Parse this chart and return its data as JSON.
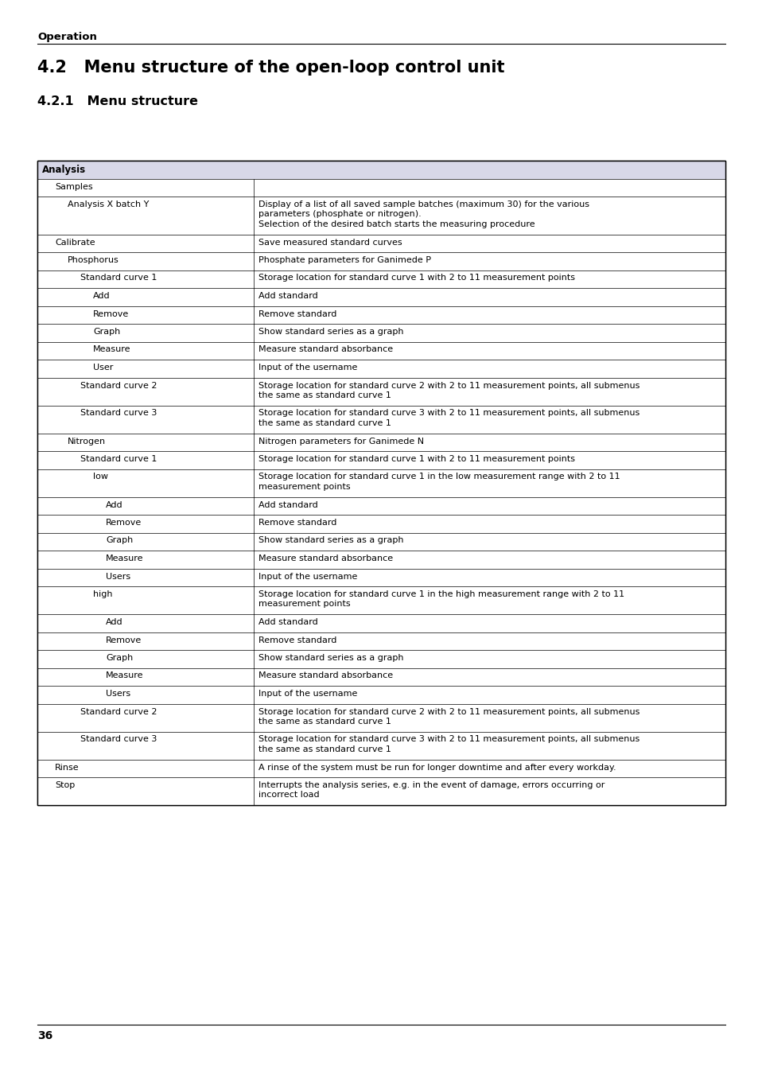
{
  "page_title": "Operation",
  "section_title": "4.2   Menu structure of the open-loop control unit",
  "subsection_title": "4.2.1   Menu structure",
  "page_number": "36",
  "header_bg": "#d8d8e8",
  "table_border": "#000000",
  "table_rows": [
    {
      "indent": 0,
      "col1": "Analysis",
      "col2": "",
      "header": true
    },
    {
      "indent": 1,
      "col1": "Samples",
      "col2": ""
    },
    {
      "indent": 2,
      "col1": "Analysis X batch Y",
      "col2": "Display of a list of all saved sample batches (maximum 30) for the various\nparameters (phosphate or nitrogen).\nSelection of the desired batch starts the measuring procedure"
    },
    {
      "indent": 1,
      "col1": "Calibrate",
      "col2": "Save measured standard curves"
    },
    {
      "indent": 2,
      "col1": "Phosphorus",
      "col2": "Phosphate parameters for Ganimede P"
    },
    {
      "indent": 3,
      "col1": "Standard curve 1",
      "col2": "Storage location for standard curve 1 with 2 to 11 measurement points"
    },
    {
      "indent": 4,
      "col1": "Add",
      "col2": "Add standard"
    },
    {
      "indent": 4,
      "col1": "Remove",
      "col2": "Remove standard"
    },
    {
      "indent": 4,
      "col1": "Graph",
      "col2": "Show standard series as a graph"
    },
    {
      "indent": 4,
      "col1": "Measure",
      "col2": "Measure standard absorbance"
    },
    {
      "indent": 4,
      "col1": "User",
      "col2": "Input of the username"
    },
    {
      "indent": 3,
      "col1": "Standard curve 2",
      "col2": "Storage location for standard curve 2 with 2 to 11 measurement points, all submenus\nthe same as standard curve 1"
    },
    {
      "indent": 3,
      "col1": "Standard curve 3",
      "col2": "Storage location for standard curve 3 with 2 to 11 measurement points, all submenus\nthe same as standard curve 1"
    },
    {
      "indent": 2,
      "col1": "Nitrogen",
      "col2": "Nitrogen parameters for Ganimede N"
    },
    {
      "indent": 3,
      "col1": "Standard curve 1",
      "col2": "Storage location for standard curve 1 with 2 to 11 measurement points"
    },
    {
      "indent": 4,
      "col1": "low",
      "col2": "Storage location for standard curve 1 in the low measurement range with 2 to 11\nmeasurement points"
    },
    {
      "indent": 5,
      "col1": "Add",
      "col2": "Add standard"
    },
    {
      "indent": 5,
      "col1": "Remove",
      "col2": "Remove standard"
    },
    {
      "indent": 5,
      "col1": "Graph",
      "col2": "Show standard series as a graph"
    },
    {
      "indent": 5,
      "col1": "Measure",
      "col2": "Measure standard absorbance"
    },
    {
      "indent": 5,
      "col1": "Users",
      "col2": "Input of the username"
    },
    {
      "indent": 4,
      "col1": "high",
      "col2": "Storage location for standard curve 1 in the high measurement range with 2 to 11\nmeasurement points"
    },
    {
      "indent": 5,
      "col1": "Add",
      "col2": "Add standard"
    },
    {
      "indent": 5,
      "col1": "Remove",
      "col2": "Remove standard"
    },
    {
      "indent": 5,
      "col1": "Graph",
      "col2": "Show standard series as a graph"
    },
    {
      "indent": 5,
      "col1": "Measure",
      "col2": "Measure standard absorbance"
    },
    {
      "indent": 5,
      "col1": "Users",
      "col2": "Input of the username"
    },
    {
      "indent": 3,
      "col1": "Standard curve 2",
      "col2": "Storage location for standard curve 2 with 2 to 11 measurement points, all submenus\nthe same as standard curve 1"
    },
    {
      "indent": 3,
      "col1": "Standard curve 3",
      "col2": "Storage location for standard curve 3 with 2 to 11 measurement points, all submenus\nthe same as standard curve 1"
    },
    {
      "indent": 1,
      "col1": "Rinse",
      "col2": "A rinse of the system must be run for longer downtime and after every workday."
    },
    {
      "indent": 1,
      "col1": "Stop",
      "col2": "Interrupts the analysis series, e.g. in the event of damage, errors occurring or\nincorrect load"
    }
  ]
}
